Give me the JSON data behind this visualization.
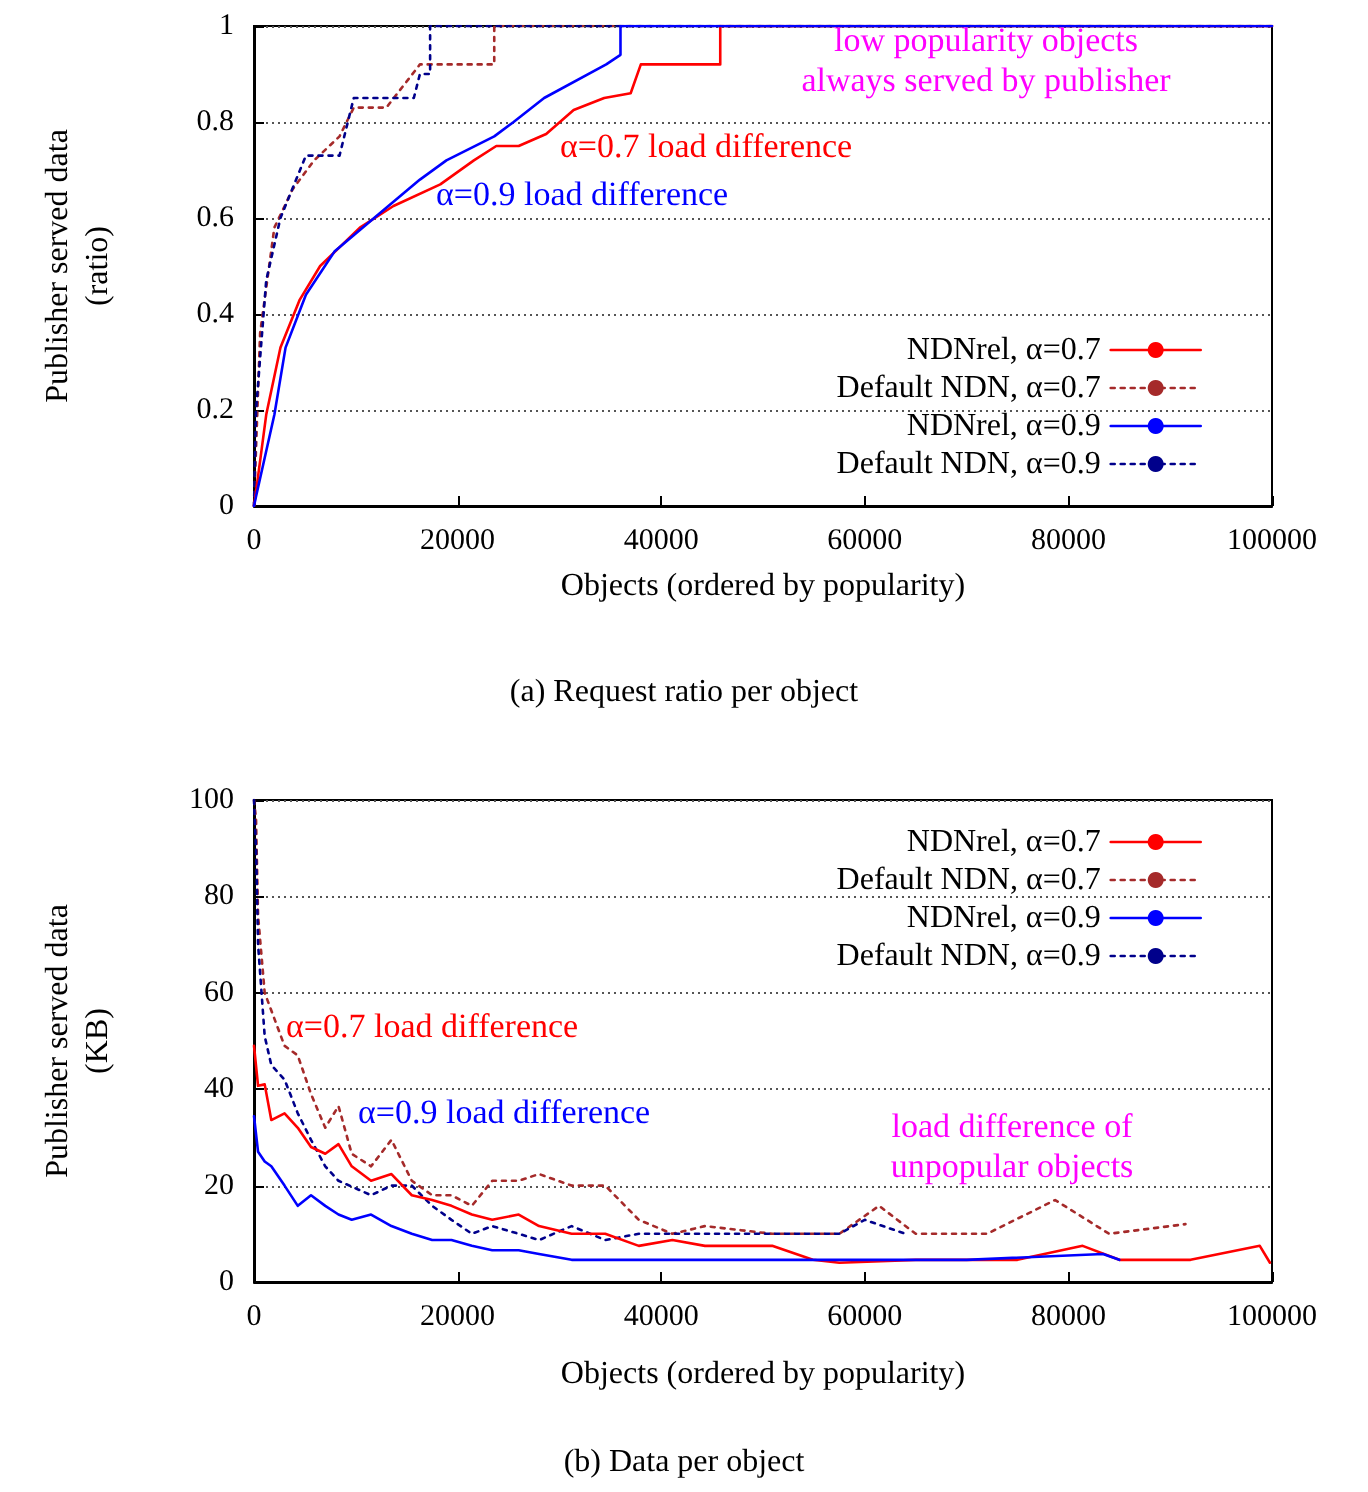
{
  "chart_data": [
    {
      "type": "line",
      "title": "(a) Request ratio per object",
      "xlabel": "Objects (ordered by popularity)",
      "ylabel": "Publisher served data\n(ratio)",
      "xlim": [
        0,
        100000
      ],
      "xticks": [
        0,
        20000,
        40000,
        60000,
        80000,
        100000
      ],
      "ylim": [
        0,
        1
      ],
      "yticks": [
        0,
        0.2,
        0.4,
        0.6,
        0.8,
        1
      ],
      "grid": "y",
      "legend": "bottom right",
      "marker": "none",
      "series": [
        {
          "name": "NDNrel, α=0.7",
          "color": "#ff0000",
          "line_style": "solid",
          "x": [
            0,
            200,
            1200,
            2600,
            4500,
            6500,
            10400,
            13700,
            18300,
            21600,
            23800,
            26000,
            28700,
            31400,
            34400,
            37000,
            38000,
            43200,
            45800,
            45800,
            100000
          ],
          "values": [
            0,
            0.03,
            0.19,
            0.33,
            0.43,
            0.5,
            0.58,
            0.625,
            0.67,
            0.72,
            0.75,
            0.75,
            0.775,
            0.825,
            0.85,
            0.86,
            0.92,
            0.92,
            0.92,
            1,
            1
          ]
        },
        {
          "name": "Default NDN, α=0.7",
          "color": "#a52a2a",
          "line_style": "dotted",
          "x": [
            0,
            600,
            2000,
            3800,
            5900,
            8400,
            9800,
            13000,
            16300,
            20800,
            23600,
            23600,
            100000
          ],
          "values": [
            0,
            0.36,
            0.58,
            0.66,
            0.72,
            0.77,
            0.83,
            0.83,
            0.92,
            0.92,
            0.92,
            1,
            1
          ]
        },
        {
          "name": "NDNrel, α=0.9",
          "color": "#0000ff",
          "line_style": "solid",
          "x": [
            0,
            200,
            2000,
            3100,
            5100,
            7900,
            11800,
            16300,
            18900,
            23600,
            25500,
            28500,
            34600,
            36000,
            36000,
            100000
          ],
          "values": [
            0,
            0.02,
            0.19,
            0.33,
            0.44,
            0.53,
            0.6,
            0.68,
            0.72,
            0.77,
            0.8,
            0.85,
            0.92,
            0.94,
            1,
            1
          ]
        },
        {
          "name": "Default NDN, α=0.9",
          "color": "#00008b",
          "line_style": "dotted",
          "x": [
            0,
            200,
            1200,
            2600,
            5100,
            8400,
            9800,
            15700,
            16300,
            17300,
            17300,
            100000
          ],
          "values": [
            0,
            0.2,
            0.47,
            0.6,
            0.73,
            0.73,
            0.85,
            0.85,
            0.9,
            0.9,
            1,
            1
          ]
        }
      ],
      "annotations": [
        "low popularity objects\nalways served by publisher",
        "α=0.7 load difference",
        "α=0.9 load difference"
      ]
    },
    {
      "type": "line",
      "title": "(b) Data per object",
      "xlabel": "Objects (ordered by popularity)",
      "ylabel": "Publisher served data\n(KB)",
      "xlim": [
        0,
        100000
      ],
      "xticks": [
        0,
        20000,
        40000,
        60000,
        80000,
        100000
      ],
      "ylim": [
        0,
        100
      ],
      "yticks": [
        0,
        20,
        40,
        60,
        80,
        100
      ],
      "grid": "y",
      "legend": "top right",
      "marker": "none",
      "series": [
        {
          "name": "NDNrel, α=0.7",
          "color": "#ff0000",
          "line_style": "solid",
          "x": [
            0,
            400,
            1050,
            1700,
            3000,
            4300,
            5600,
            7000,
            8300,
            9600,
            11500,
            13500,
            15500,
            17500,
            19400,
            21400,
            23400,
            26000,
            28000,
            31200,
            34500,
            37800,
            41100,
            44300,
            50900,
            54900,
            57500,
            65000,
            75000,
            81400,
            85000,
            92000,
            98800,
            99800
          ],
          "values": [
            49,
            40.7,
            41,
            33.6,
            35,
            32,
            28,
            26.6,
            28.6,
            24,
            21,
            22.4,
            18,
            17,
            15.8,
            14,
            12.9,
            14,
            11.6,
            10,
            10,
            7.5,
            8.7,
            7.5,
            7.5,
            4.6,
            4,
            4.6,
            4.6,
            7.5,
            4.6,
            4.6,
            7.5,
            4
          ]
        },
        {
          "name": "Default NDN, α=0.7",
          "color": "#a52a2a",
          "line_style": "dotted",
          "x": [
            0,
            200,
            400,
            1050,
            3000,
            4300,
            5600,
            7000,
            8300,
            9600,
            11500,
            13500,
            15500,
            17500,
            19400,
            21400,
            23400,
            26000,
            28000,
            31200,
            34500,
            37800,
            41100,
            44300,
            50900,
            57500,
            61400,
            65000,
            72000,
            78700,
            84000,
            91500
          ],
          "values": [
            100,
            96,
            76,
            60,
            49,
            47,
            39,
            32,
            36.5,
            26.6,
            24,
            29.5,
            21,
            18,
            18,
            15.8,
            21,
            21,
            22.4,
            20,
            20,
            12.9,
            10,
            11.6,
            10,
            10,
            15.8,
            10,
            10,
            17,
            10,
            12
          ]
        },
        {
          "name": "NDNrel, α=0.9",
          "color": "#0000ff",
          "line_style": "solid",
          "x": [
            0,
            400,
            1050,
            1700,
            3000,
            4300,
            5600,
            7000,
            8300,
            9600,
            11500,
            13500,
            15500,
            17500,
            19400,
            21400,
            23400,
            26000,
            28000,
            31200,
            34500,
            37800,
            41100,
            44300,
            50900,
            57500,
            70000,
            83400,
            85000
          ],
          "values": [
            34.4,
            27,
            25,
            24,
            20,
            15.8,
            18,
            15.8,
            14,
            12.9,
            14,
            11.6,
            10,
            8.7,
            8.7,
            7.5,
            6.6,
            6.6,
            5.8,
            4.6,
            4.6,
            4.6,
            4.6,
            4.6,
            4.6,
            4.6,
            4.6,
            5.8,
            4.6
          ]
        },
        {
          "name": "Default NDN, α=0.9",
          "color": "#00008b",
          "line_style": "dotted",
          "x": [
            0,
            200,
            400,
            1050,
            1700,
            3000,
            4300,
            5600,
            7000,
            8300,
            11500,
            13500,
            15500,
            17500,
            19400,
            21400,
            23400,
            26000,
            28000,
            31200,
            34500,
            37800,
            41100,
            44300,
            50900,
            57500,
            60000,
            64000
          ],
          "values": [
            100,
            90,
            70,
            51,
            45,
            42,
            35,
            29.5,
            24,
            21,
            18,
            20,
            20,
            15.8,
            12.9,
            10,
            11.6,
            10,
            8.7,
            11.6,
            8.7,
            10,
            10,
            10,
            10,
            10,
            12.9,
            10
          ]
        }
      ],
      "annotations": [
        "α=0.7 load difference",
        "α=0.9 load difference",
        "load difference of\nunpopular objects"
      ]
    }
  ]
}
